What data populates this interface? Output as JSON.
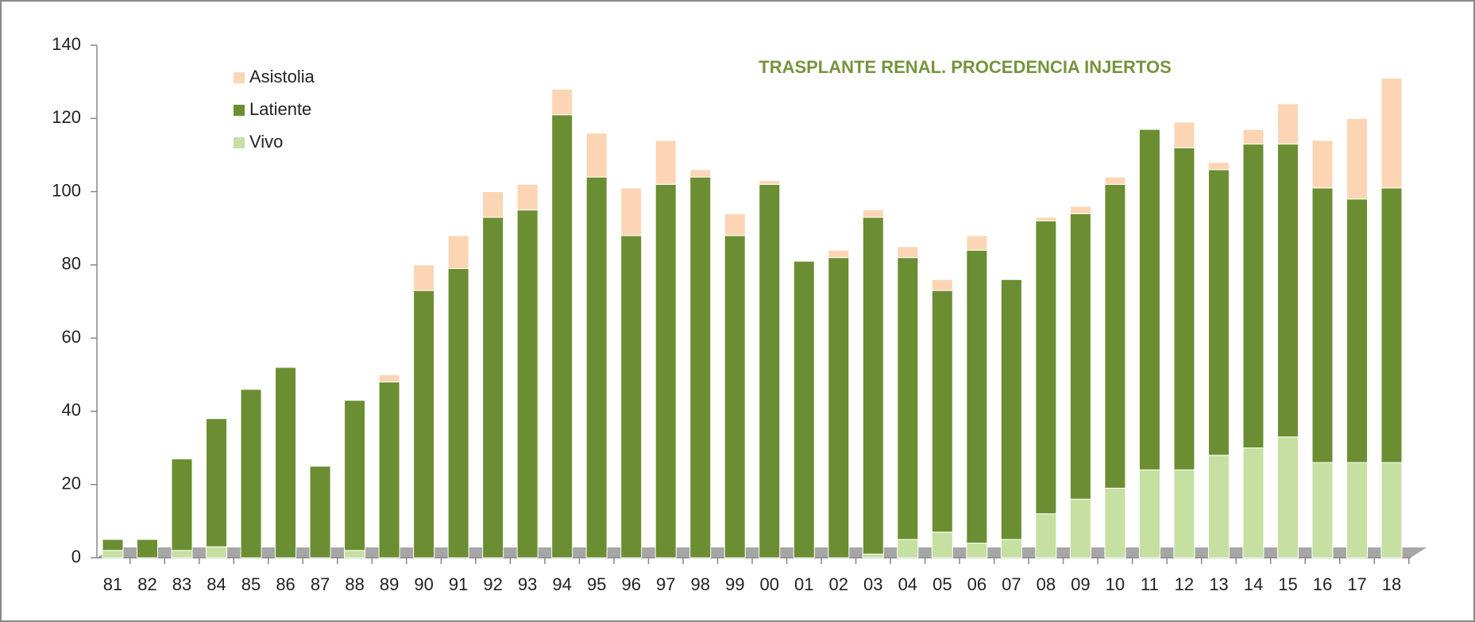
{
  "chart_data": {
    "type": "stacked_bar",
    "title": "TRASPLANTE RENAL. PROCEDENCIA INJERTOS",
    "categories": [
      "81",
      "82",
      "83",
      "84",
      "85",
      "86",
      "87",
      "88",
      "89",
      "90",
      "91",
      "92",
      "93",
      "94",
      "95",
      "96",
      "97",
      "98",
      "99",
      "00",
      "01",
      "02",
      "03",
      "04",
      "05",
      "06",
      "07",
      "08",
      "09",
      "10",
      "11",
      "12",
      "13",
      "14",
      "15",
      "16",
      "17",
      "18"
    ],
    "series": [
      {
        "name": "Vivo",
        "color": "#c5e0a0",
        "values": [
          2,
          0,
          2,
          3,
          0,
          0,
          0,
          2,
          0,
          0,
          0,
          0,
          0,
          0,
          0,
          0,
          0,
          0,
          0,
          0,
          0,
          0,
          1,
          5,
          7,
          4,
          5,
          12,
          16,
          19,
          24,
          24,
          28,
          30,
          33,
          26,
          26,
          26
        ]
      },
      {
        "name": "Latiente",
        "color": "#6b8e32",
        "values": [
          3,
          5,
          25,
          35,
          46,
          52,
          25,
          41,
          48,
          73,
          79,
          93,
          95,
          121,
          104,
          88,
          102,
          104,
          88,
          102,
          81,
          82,
          92,
          77,
          66,
          80,
          71,
          80,
          78,
          83,
          93,
          88,
          78,
          83,
          80,
          75,
          72,
          75
        ]
      },
      {
        "name": "Asistolia",
        "color": "#fcd5b4",
        "values": [
          0,
          0,
          0,
          0,
          0,
          0,
          0,
          0,
          2,
          7,
          9,
          7,
          7,
          7,
          12,
          13,
          12,
          2,
          6,
          1,
          0,
          2,
          2,
          3,
          3,
          4,
          0,
          1,
          2,
          2,
          0,
          7,
          2,
          4,
          11,
          13,
          22,
          30
        ]
      }
    ],
    "ylim": [
      0,
      140
    ],
    "yticks": [
      0,
      20,
      40,
      60,
      80,
      100,
      120,
      140
    ],
    "legend": "upper left"
  }
}
